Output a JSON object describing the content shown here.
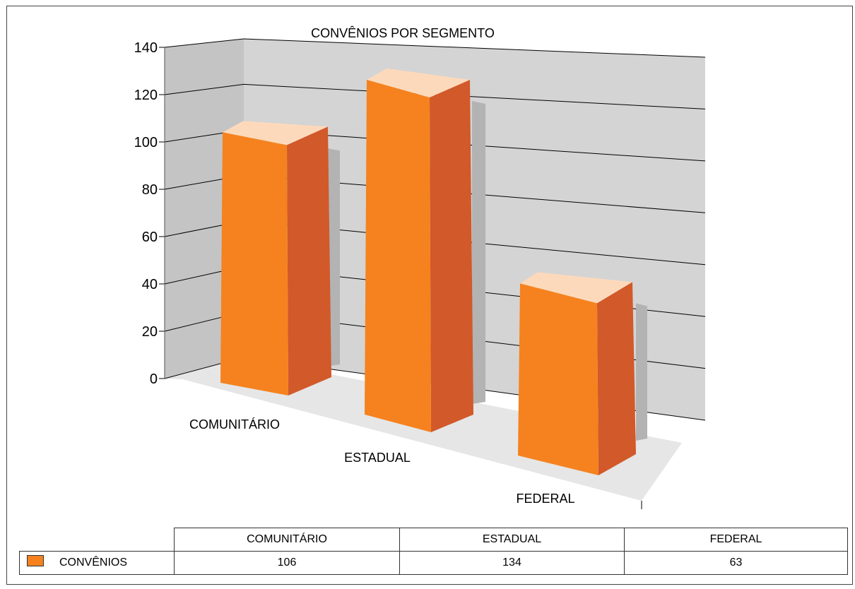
{
  "chart_data": {
    "type": "bar",
    "title": "CONVÊNIOS POR SEGMENTO",
    "categories": [
      "COMUNITÁRIO",
      "ESTADUAL",
      "FEDERAL"
    ],
    "series": [
      {
        "name": "CONVÊNIOS",
        "values": [
          106,
          134,
          63
        ]
      }
    ],
    "ylim": [
      0,
      140
    ],
    "yticks": [
      "0",
      "20",
      "40",
      "60",
      "80",
      "100",
      "120",
      "140"
    ],
    "grid": true,
    "legend": "table-bottom",
    "colors": {
      "bar_front": "#f5821f",
      "bar_side": "#d2592a",
      "bar_top": "#fdd9bb",
      "shadow": "#b3b3b3",
      "back_wall": "#d4d4d4",
      "side_wall": "#c4c4c4",
      "floor": "#e6e6e6"
    }
  },
  "table": {
    "headers": [
      "COMUNITÁRIO",
      "ESTADUAL",
      "FEDERAL"
    ],
    "row_label": "CONVÊNIOS",
    "values": [
      "106",
      "134",
      "63"
    ]
  }
}
